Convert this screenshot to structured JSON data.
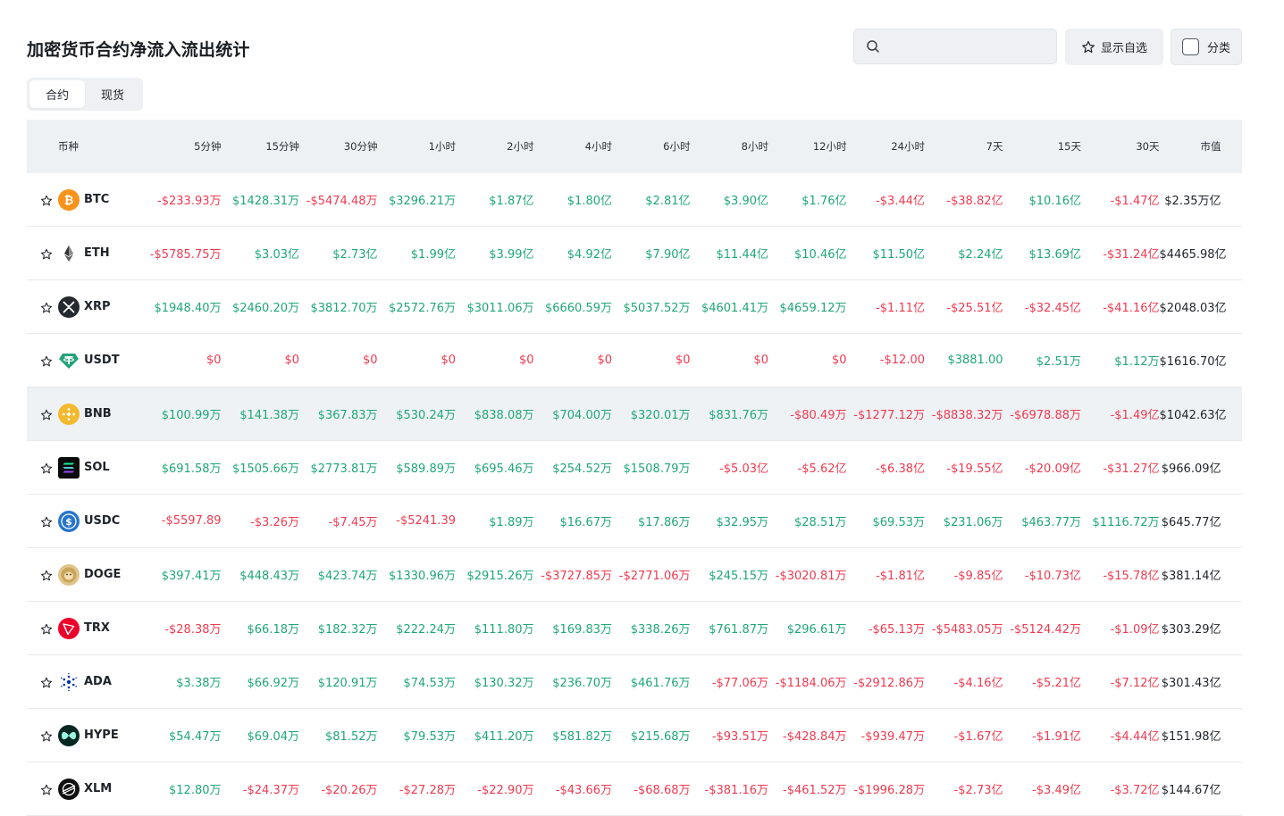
{
  "page": {
    "title": "加密货币合约净流入流出统计"
  },
  "search": {
    "placeholder": "",
    "value": ""
  },
  "watchlist_button": {
    "label": "显示自选"
  },
  "category_button": {
    "label": "分类"
  },
  "tabs": [
    {
      "label": "合约",
      "active": true
    },
    {
      "label": "现货",
      "active": false
    }
  ],
  "colors": {
    "positive": "#1fa776",
    "negative": "#ef3a50"
  },
  "table": {
    "headers": [
      "币种",
      "5分钟",
      "15分钟",
      "30分钟",
      "1小时",
      "2小时",
      "4小时",
      "6小时",
      "8小时",
      "12小时",
      "24小时",
      "7天",
      "15天",
      "30天",
      "市值"
    ],
    "rows": [
      {
        "coin": "BTC",
        "icon": "btc-icon",
        "highlight": false,
        "values": [
          "-$233.93万",
          "$1428.31万",
          "-$5474.48万",
          "$3296.21万",
          "$1.87亿",
          "$1.80亿",
          "$2.81亿",
          "$3.90亿",
          "$1.76亿",
          "-$3.44亿",
          "-$38.82亿",
          "$10.16亿",
          "-$1.47亿"
        ],
        "dirs": [
          "neg",
          "pos",
          "neg",
          "pos",
          "pos",
          "pos",
          "pos",
          "pos",
          "pos",
          "neg",
          "neg",
          "pos",
          "neg"
        ],
        "market_cap": "$2.35万亿"
      },
      {
        "coin": "ETH",
        "icon": "eth-icon",
        "highlight": false,
        "values": [
          "-$5785.75万",
          "$3.03亿",
          "$2.73亿",
          "$1.99亿",
          "$3.99亿",
          "$4.92亿",
          "$7.90亿",
          "$11.44亿",
          "$10.46亿",
          "$11.50亿",
          "$2.24亿",
          "$13.69亿",
          "-$31.24亿"
        ],
        "dirs": [
          "neg",
          "pos",
          "pos",
          "pos",
          "pos",
          "pos",
          "pos",
          "pos",
          "pos",
          "pos",
          "pos",
          "pos",
          "neg"
        ],
        "market_cap": "$4465.98亿"
      },
      {
        "coin": "XRP",
        "icon": "xrp-icon",
        "highlight": false,
        "values": [
          "$1948.40万",
          "$2460.20万",
          "$3812.70万",
          "$2572.76万",
          "$3011.06万",
          "$6660.59万",
          "$5037.52万",
          "$4601.41万",
          "$4659.12万",
          "-$1.11亿",
          "-$25.51亿",
          "-$32.45亿",
          "-$41.16亿"
        ],
        "dirs": [
          "pos",
          "pos",
          "pos",
          "pos",
          "pos",
          "pos",
          "pos",
          "pos",
          "pos",
          "neg",
          "neg",
          "neg",
          "neg"
        ],
        "market_cap": "$2048.03亿"
      },
      {
        "coin": "USDT",
        "icon": "usdt-icon",
        "highlight": false,
        "values": [
          "$0",
          "$0",
          "$0",
          "$0",
          "$0",
          "$0",
          "$0",
          "$0",
          "$0",
          "-$12.00",
          "$3881.00",
          "$2.51万",
          "$1.12万"
        ],
        "dirs": [
          "neg",
          "neg",
          "neg",
          "neg",
          "neg",
          "neg",
          "neg",
          "neg",
          "neg",
          "neg",
          "pos",
          "pos",
          "pos"
        ],
        "market_cap": "$1616.70亿"
      },
      {
        "coin": "BNB",
        "icon": "bnb-icon",
        "highlight": true,
        "values": [
          "$100.99万",
          "$141.38万",
          "$367.83万",
          "$530.24万",
          "$838.08万",
          "$704.00万",
          "$320.01万",
          "$831.76万",
          "-$80.49万",
          "-$1277.12万",
          "-$8838.32万",
          "-$6978.88万",
          "-$1.49亿"
        ],
        "dirs": [
          "pos",
          "pos",
          "pos",
          "pos",
          "pos",
          "pos",
          "pos",
          "pos",
          "neg",
          "neg",
          "neg",
          "neg",
          "neg"
        ],
        "market_cap": "$1042.63亿"
      },
      {
        "coin": "SOL",
        "icon": "sol-icon",
        "highlight": false,
        "values": [
          "$691.58万",
          "$1505.66万",
          "$2773.81万",
          "$589.89万",
          "$695.46万",
          "$254.52万",
          "$1508.79万",
          "-$5.03亿",
          "-$5.62亿",
          "-$6.38亿",
          "-$19.55亿",
          "-$20.09亿",
          "-$31.27亿"
        ],
        "dirs": [
          "pos",
          "pos",
          "pos",
          "pos",
          "pos",
          "pos",
          "pos",
          "neg",
          "neg",
          "neg",
          "neg",
          "neg",
          "neg"
        ],
        "market_cap": "$966.09亿"
      },
      {
        "coin": "USDC",
        "icon": "usdc-icon",
        "highlight": false,
        "values": [
          "-$5597.89",
          "-$3.26万",
          "-$7.45万",
          "-$5241.39",
          "$1.89万",
          "$16.67万",
          "$17.86万",
          "$32.95万",
          "$28.51万",
          "$69.53万",
          "$231.06万",
          "$463.77万",
          "$1116.72万"
        ],
        "dirs": [
          "neg",
          "neg",
          "neg",
          "neg",
          "pos",
          "pos",
          "pos",
          "pos",
          "pos",
          "pos",
          "pos",
          "pos",
          "pos"
        ],
        "market_cap": "$645.77亿"
      },
      {
        "coin": "DOGE",
        "icon": "doge-icon",
        "highlight": false,
        "values": [
          "$397.41万",
          "$448.43万",
          "$423.74万",
          "$1330.96万",
          "$2915.26万",
          "-$3727.85万",
          "-$2771.06万",
          "$245.15万",
          "-$3020.81万",
          "-$1.81亿",
          "-$9.85亿",
          "-$10.73亿",
          "-$15.78亿"
        ],
        "dirs": [
          "pos",
          "pos",
          "pos",
          "pos",
          "pos",
          "neg",
          "neg",
          "pos",
          "neg",
          "neg",
          "neg",
          "neg",
          "neg"
        ],
        "market_cap": "$381.14亿"
      },
      {
        "coin": "TRX",
        "icon": "trx-icon",
        "highlight": false,
        "values": [
          "-$28.38万",
          "$66.18万",
          "$182.32万",
          "$222.24万",
          "$111.80万",
          "$169.83万",
          "$338.26万",
          "$761.87万",
          "$296.61万",
          "-$65.13万",
          "-$5483.05万",
          "-$5124.42万",
          "-$1.09亿"
        ],
        "dirs": [
          "neg",
          "pos",
          "pos",
          "pos",
          "pos",
          "pos",
          "pos",
          "pos",
          "pos",
          "neg",
          "neg",
          "neg",
          "neg"
        ],
        "market_cap": "$303.29亿"
      },
      {
        "coin": "ADA",
        "icon": "ada-icon",
        "highlight": false,
        "values": [
          "$3.38万",
          "$66.92万",
          "$120.91万",
          "$74.53万",
          "$130.32万",
          "$236.70万",
          "$461.76万",
          "-$77.06万",
          "-$1184.06万",
          "-$2912.86万",
          "-$4.16亿",
          "-$5.21亿",
          "-$7.12亿"
        ],
        "dirs": [
          "pos",
          "pos",
          "pos",
          "pos",
          "pos",
          "pos",
          "pos",
          "neg",
          "neg",
          "neg",
          "neg",
          "neg",
          "neg"
        ],
        "market_cap": "$301.43亿"
      },
      {
        "coin": "HYPE",
        "icon": "hype-icon",
        "highlight": false,
        "values": [
          "$54.47万",
          "$69.04万",
          "$81.52万",
          "$79.53万",
          "$411.20万",
          "$581.82万",
          "$215.68万",
          "-$93.51万",
          "-$428.84万",
          "-$939.47万",
          "-$1.67亿",
          "-$1.91亿",
          "-$4.44亿"
        ],
        "dirs": [
          "pos",
          "pos",
          "pos",
          "pos",
          "pos",
          "pos",
          "pos",
          "neg",
          "neg",
          "neg",
          "neg",
          "neg",
          "neg"
        ],
        "market_cap": "$151.98亿"
      },
      {
        "coin": "XLM",
        "icon": "xlm-icon",
        "highlight": false,
        "values": [
          "$12.80万",
          "-$24.37万",
          "-$20.26万",
          "-$27.28万",
          "-$22.90万",
          "-$43.66万",
          "-$68.68万",
          "-$381.16万",
          "-$461.52万",
          "-$1996.28万",
          "-$2.73亿",
          "-$3.49亿",
          "-$3.72亿"
        ],
        "dirs": [
          "pos",
          "neg",
          "neg",
          "neg",
          "neg",
          "neg",
          "neg",
          "neg",
          "neg",
          "neg",
          "neg",
          "neg",
          "neg"
        ],
        "market_cap": "$144.67亿"
      }
    ]
  }
}
